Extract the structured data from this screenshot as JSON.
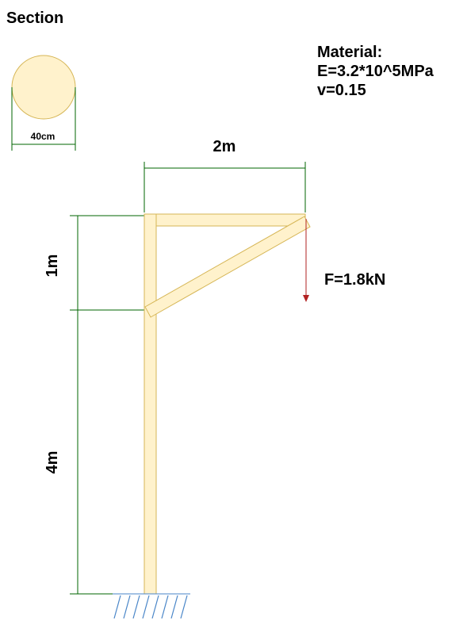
{
  "section": {
    "title": "Section",
    "diameter_label": "40cm"
  },
  "material": {
    "heading": "Material:",
    "elastic_modulus": "E=3.2*10^5MPa",
    "poisson_ratio": "v=0.15"
  },
  "dimensions": {
    "beam_span": "2m",
    "upper_height": "1m",
    "lower_height": "4m"
  },
  "load": {
    "label": "F=1.8kN"
  },
  "colors": {
    "member_fill": "#fff2cc",
    "member_stroke": "#d6b656",
    "dimension_line": "#006400",
    "load_arrow": "#b22222",
    "support_hatch": "#4a86c8"
  }
}
